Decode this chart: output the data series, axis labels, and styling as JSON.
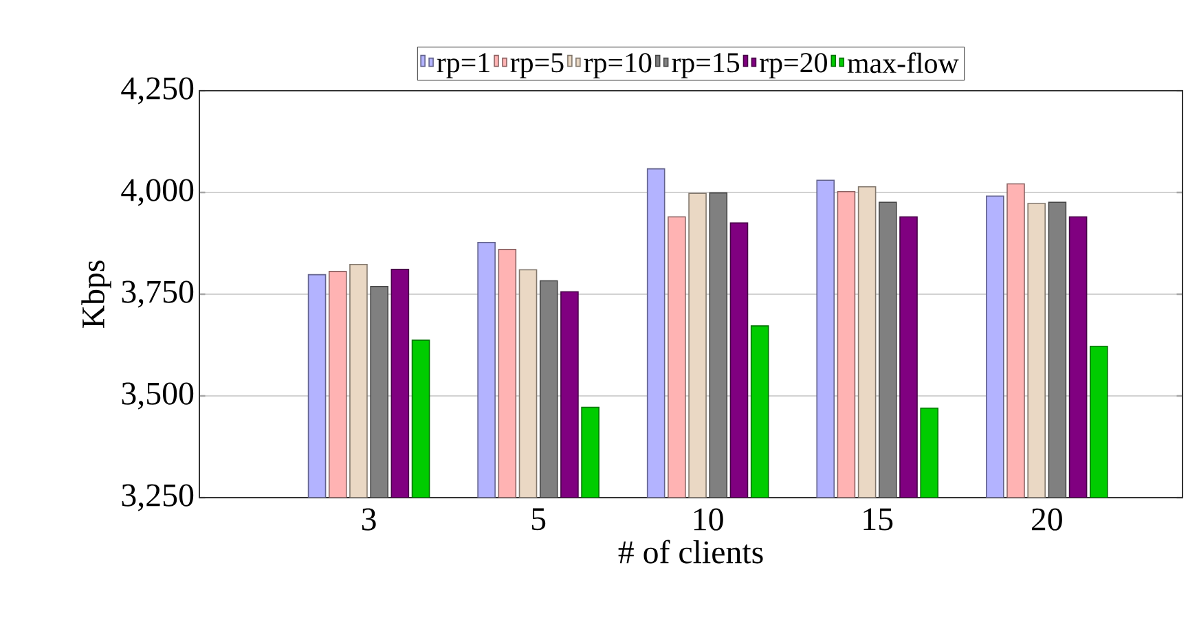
{
  "chart_data": {
    "type": "bar",
    "xlabel": "# of clients",
    "ylabel": "Kbps",
    "categories": [
      "3",
      "5",
      "10",
      "15",
      "20"
    ],
    "series": [
      {
        "name": "rp=1",
        "color": "#b3b3ff",
        "values": [
          3798,
          3877,
          4058,
          4030,
          3991
        ]
      },
      {
        "name": "rp=5",
        "color": "#ffb3b3",
        "values": [
          3806,
          3860,
          3940,
          4002,
          4021
        ]
      },
      {
        "name": "rp=10",
        "color": "#ead8c4",
        "values": [
          3823,
          3810,
          3998,
          4014,
          3973
        ]
      },
      {
        "name": "rp=15",
        "color": "#808080",
        "values": [
          3769,
          3783,
          3999,
          3976,
          3976
        ]
      },
      {
        "name": "rp=20",
        "color": "#800080",
        "values": [
          3811,
          3756,
          3925,
          3940,
          3940
        ]
      },
      {
        "name": "max-flow",
        "color": "#00cc00",
        "values": [
          3637,
          3472,
          3672,
          3470,
          3622
        ]
      }
    ],
    "ylim": [
      3250,
      4250
    ],
    "yticks": [
      {
        "value": 3250,
        "label": "3,250"
      },
      {
        "value": 3500,
        "label": "3,500"
      },
      {
        "value": 3750,
        "label": "3,750"
      },
      {
        "value": 4000,
        "label": "4,000"
      },
      {
        "value": 4250,
        "label": "4,250"
      }
    ],
    "grid": "y",
    "legend": "top"
  }
}
